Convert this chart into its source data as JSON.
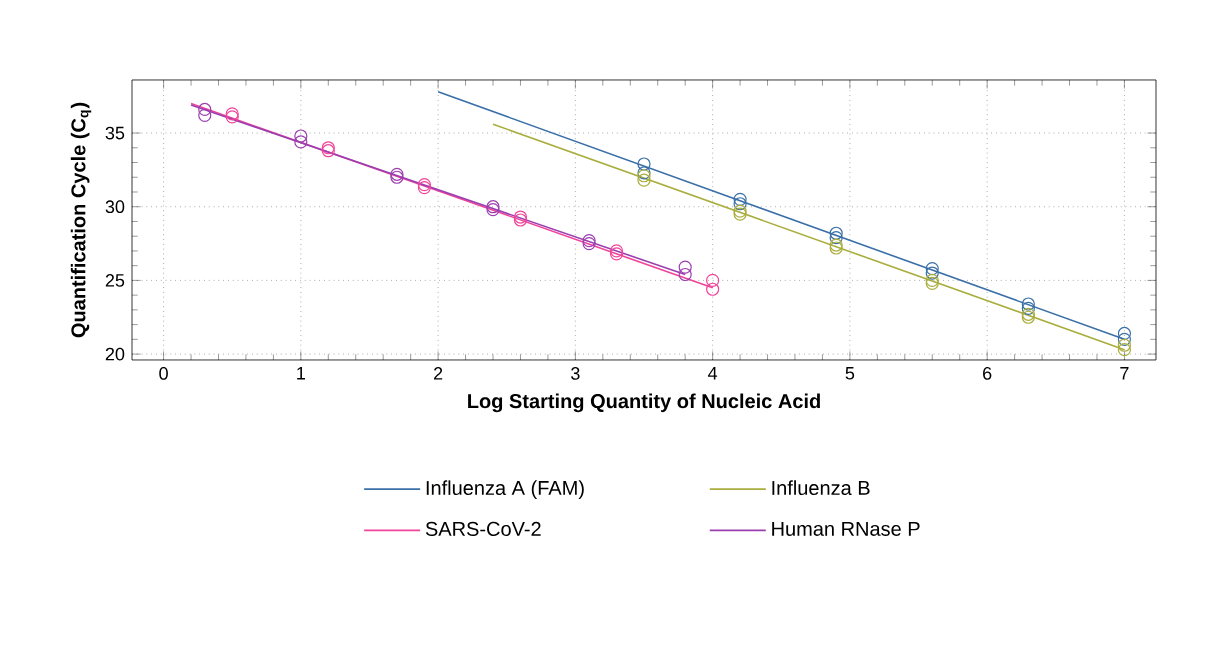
{
  "chart_data": {
    "type": "scatter",
    "xlabel": "Log Starting Quantity of Nucleic Acid",
    "ylabel": "Quantification Cycle (C$_{q}$)",
    "xlim": [
      -0.23,
      7.23
    ],
    "ylim": [
      19.6,
      38.6
    ],
    "xticks": [
      0,
      1,
      2,
      3,
      4,
      5,
      6,
      7
    ],
    "yticks": [
      20,
      25,
      30,
      35
    ],
    "grid": true,
    "legend": "bottom",
    "marker": "circle",
    "series": [
      {
        "name": "Influenza A (FAM)",
        "color": "#3a6fa8",
        "x": [
          3.5,
          3.5,
          4.2,
          4.2,
          4.9,
          4.9,
          5.6,
          5.6,
          6.3,
          6.3,
          7,
          7
        ],
        "values": [
          32.9,
          32.3,
          30.5,
          30.2,
          28.2,
          27.9,
          25.8,
          25.5,
          23.4,
          23.1,
          21.4,
          21.0
        ]
      },
      {
        "name": "Influenza B",
        "color": "#a9ad3c",
        "x": [
          3.5,
          3.5,
          4.2,
          4.2,
          4.9,
          4.9,
          5.6,
          5.6,
          6.3,
          6.3,
          7,
          7
        ],
        "values": [
          32.1,
          31.8,
          29.7,
          29.5,
          27.4,
          27.2,
          25.0,
          24.8,
          22.7,
          22.5,
          20.6,
          20.3
        ]
      },
      {
        "name": "SARS-CoV-2",
        "color": "#f0449a",
        "x": [
          0.5,
          0.5,
          1.2,
          1.2,
          1.9,
          1.9,
          2.6,
          2.6,
          3.3,
          3.3,
          4,
          4
        ],
        "values": [
          36.3,
          36.1,
          34.0,
          33.8,
          31.5,
          31.3,
          29.3,
          29.1,
          27.0,
          26.8,
          25.0,
          24.4
        ]
      },
      {
        "name": "Human RNase P",
        "color": "#9b3fb0",
        "x": [
          0.3,
          0.3,
          1,
          1,
          1.7,
          1.7,
          2.4,
          2.4,
          3.1,
          3.1,
          3.8,
          3.8
        ],
        "values": [
          36.6,
          36.2,
          34.8,
          34.4,
          32.2,
          32.0,
          30.0,
          29.8,
          27.7,
          27.5,
          25.9,
          25.4
        ]
      },
      {
        "type": "line",
        "marker": "none",
        "color": "#3a6fa8",
        "x": [
          2,
          7
        ],
        "values": [
          37.8,
          21.0
        ]
      },
      {
        "type": "line",
        "marker": "none",
        "color": "#a9ad3c",
        "x": [
          2.4,
          7
        ],
        "values": [
          35.6,
          20.3
        ]
      },
      {
        "type": "line",
        "marker": "none",
        "color": "#f0449a",
        "x": [
          0.2,
          4
        ],
        "values": [
          37.0,
          24.5
        ]
      },
      {
        "type": "line",
        "marker": "none",
        "color": "#9b3fb0",
        "x": [
          0.2,
          3.8
        ],
        "values": [
          36.9,
          25.4
        ]
      }
    ]
  }
}
